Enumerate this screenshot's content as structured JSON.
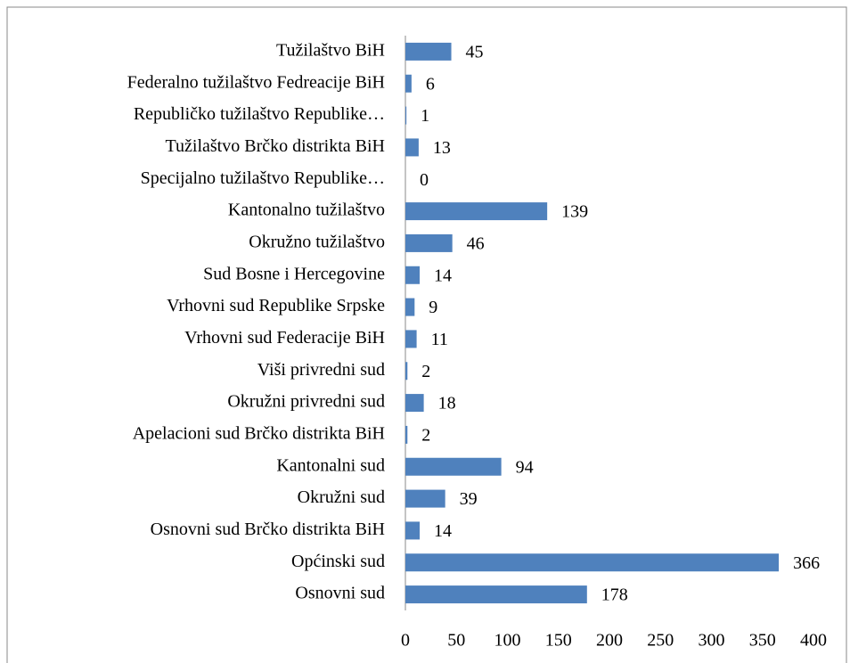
{
  "chart_data": {
    "type": "bar",
    "orientation": "horizontal",
    "categories": [
      "Tužilaštvo BiH",
      "Federalno tužilaštvo Fedreacije BiH",
      "Republičko tužilaštvo Republike…",
      "Tužilaštvo Brčko distrikta BiH",
      "Specijalno tužilaštvo Republike…",
      "Kantonalno tužilaštvo",
      "Okružno tužilaštvo",
      "Sud Bosne i Hercegovine",
      "Vrhovni sud Republike Srpske",
      "Vrhovni sud Federacije BiH",
      "Viši privredni sud",
      "Okružni privredni sud",
      "Apelacioni sud Brčko distrikta BiH",
      "Kantonalni sud",
      "Okružni sud",
      "Osnovni sud Brčko distrikta BiH",
      "Općinski sud",
      "Osnovni sud"
    ],
    "values": [
      45,
      6,
      1,
      13,
      0,
      139,
      46,
      14,
      9,
      11,
      2,
      18,
      2,
      94,
      39,
      14,
      366,
      178
    ],
    "color": "#4f81bd",
    "xlim": [
      0,
      400
    ],
    "xticks": [
      0,
      50,
      100,
      150,
      200,
      250,
      300,
      350,
      400
    ],
    "grid": false
  }
}
